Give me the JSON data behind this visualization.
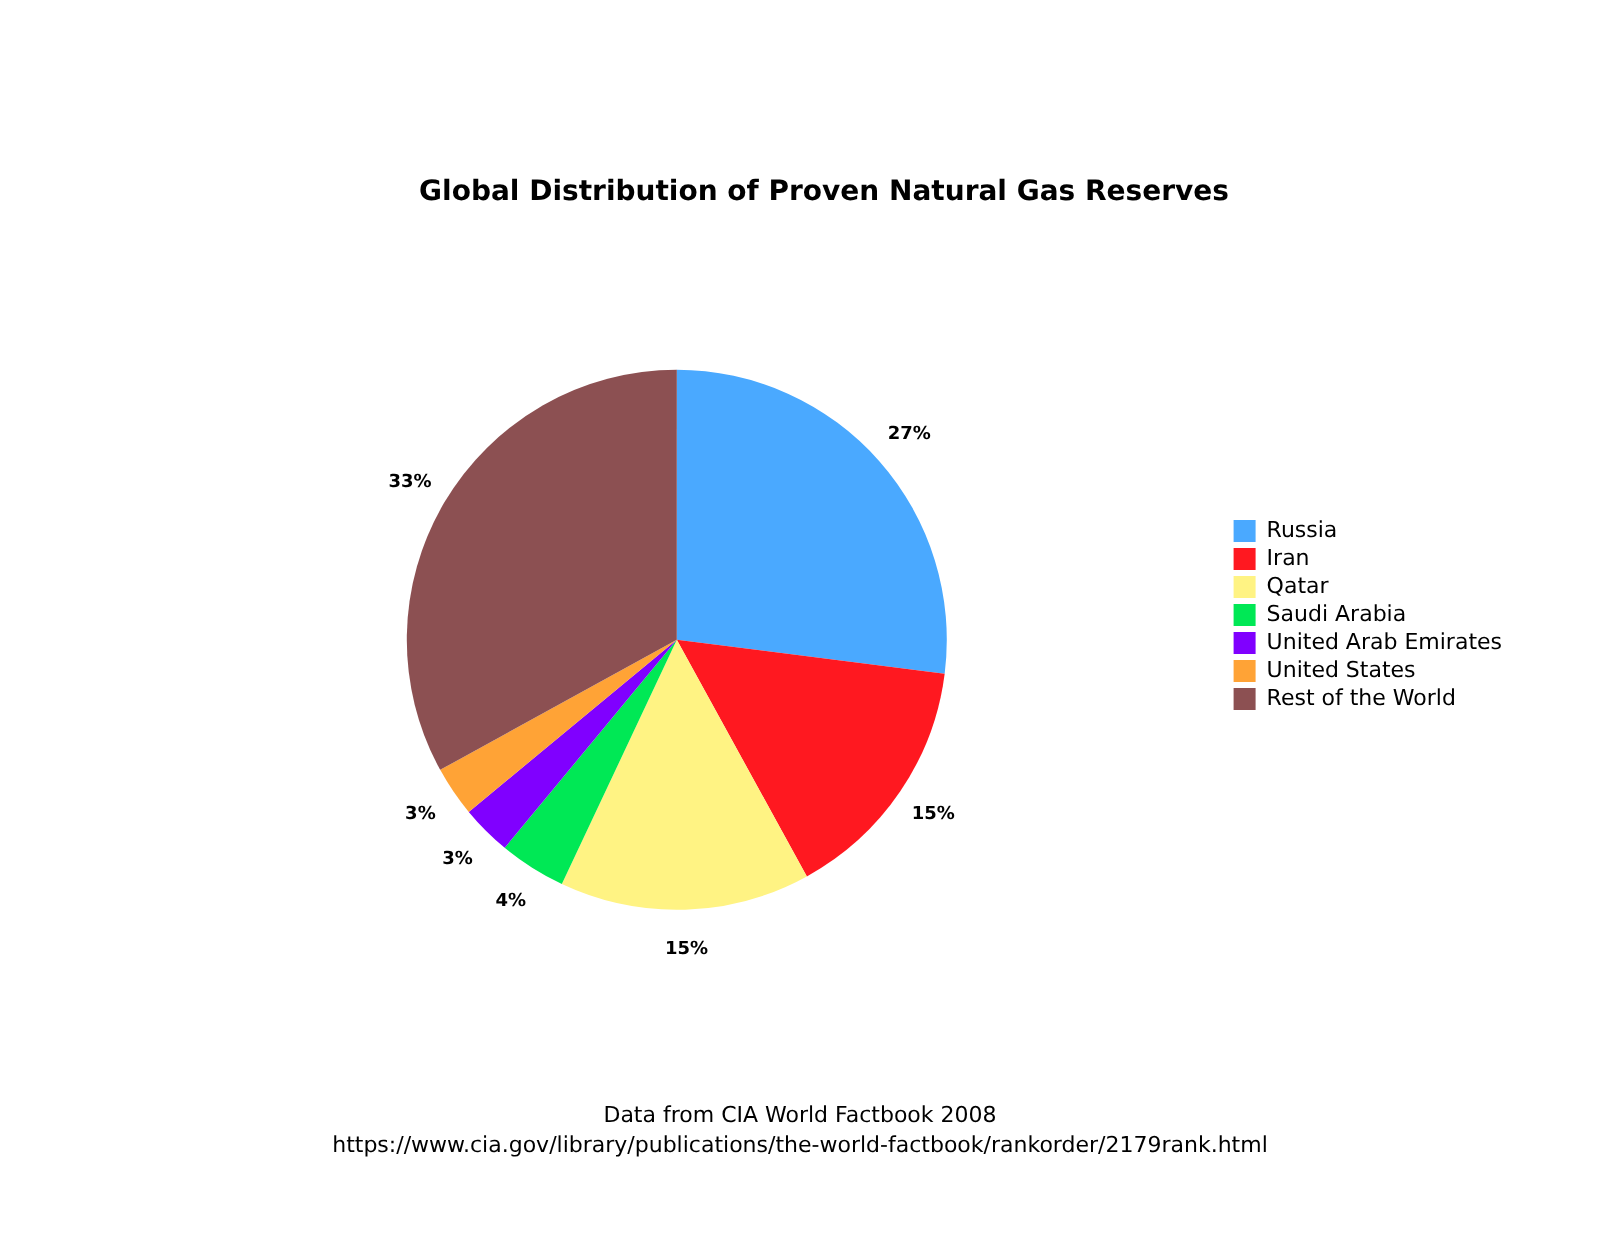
{
  "chart_data": {
    "type": "pie",
    "title": "Global Distribution of Proven Natural Gas Reserves",
    "categories": [
      "Russia",
      "Iran",
      "Qatar",
      "Saudi Arabia",
      "United Arab Emirates",
      "United States",
      "Rest of the World"
    ],
    "values": [
      27,
      15,
      15,
      4,
      3,
      3,
      33
    ],
    "colors": [
      "#4aa9ff",
      "#ff1820",
      "#fff383",
      "#00e855",
      "#8000ff",
      "#ffa336",
      "#8c5052"
    ],
    "value_labels": [
      "27%",
      "15%",
      "15%",
      "4%",
      "3%",
      "3%",
      "33%"
    ],
    "legend": "right",
    "annotations": [
      "Data from CIA World Factbook 2008",
      "https://www.cia.gov/library/publications/the-world-factbook/rankorder/2179rank.html"
    ]
  }
}
